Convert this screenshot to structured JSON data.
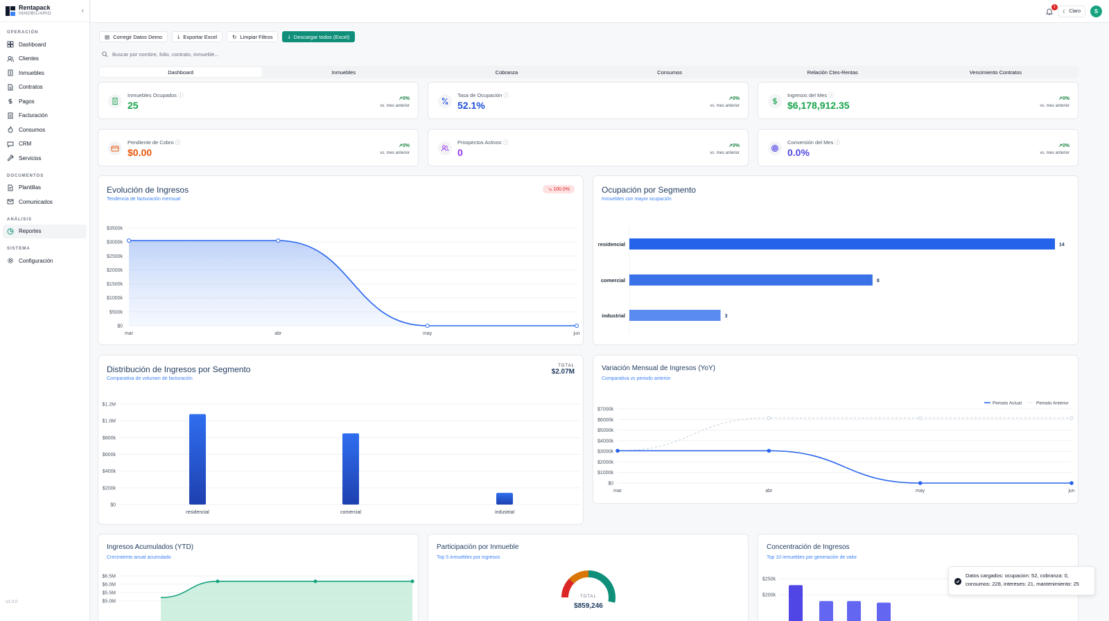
{
  "brand": {
    "name": "Rentapack",
    "sub": "INMOBILIARIO"
  },
  "sidebar": {
    "sections": [
      {
        "label": "OPERACIÓN",
        "items": [
          {
            "label": "Dashboard",
            "icon": "grid-icon"
          },
          {
            "label": "Clientes",
            "icon": "users-icon"
          },
          {
            "label": "Inmuebles",
            "icon": "building-icon"
          },
          {
            "label": "Contratos",
            "icon": "document-icon"
          },
          {
            "label": "Pagos",
            "icon": "dollar-icon"
          },
          {
            "label": "Facturación",
            "icon": "receipt-icon"
          },
          {
            "label": "Consumos",
            "icon": "flame-icon"
          },
          {
            "label": "CRM",
            "icon": "chat-icon"
          },
          {
            "label": "Servicios",
            "icon": "wrench-icon"
          }
        ]
      },
      {
        "label": "DOCUMENTOS",
        "items": [
          {
            "label": "Plantillas",
            "icon": "template-icon"
          },
          {
            "label": "Comunicados",
            "icon": "mail-icon"
          }
        ]
      },
      {
        "label": "ANÁLISIS",
        "items": [
          {
            "label": "Reportes",
            "icon": "pie-chart-icon",
            "active": true
          }
        ]
      },
      {
        "label": "SISTEMA",
        "items": [
          {
            "label": "Configuración",
            "icon": "gear-icon"
          }
        ]
      }
    ],
    "version": "V1.0.0"
  },
  "topbar": {
    "notifications": "1",
    "theme": "Claro",
    "avatar": "S"
  },
  "toolbar": {
    "fix": "Corregir Datos Demo",
    "export": "Exportar Excel",
    "clear": "Limpiar Filtros",
    "download": "Descargar todos (Excel)"
  },
  "search": {
    "placeholder": "Buscar por nombre, folio, contrato, inmueble..."
  },
  "tabs": [
    "Dashboard",
    "Inmuebles",
    "Cobranza",
    "Consumos",
    "Relación Ctes-Rentas",
    "Vencimiento Contratos"
  ],
  "kpis": [
    {
      "label": "Inmuebles Ocupados",
      "value": "25",
      "change": "↗0%",
      "note": "vs. mes anterior",
      "color": "#16a34a",
      "icon": "building-icon"
    },
    {
      "label": "Tasa de Ocupación",
      "value": "52.1%",
      "change": "↗0%",
      "note": "vs. mes anterior",
      "color": "#1d4ed8",
      "icon": "percent-icon"
    },
    {
      "label": "Ingresos del Mes",
      "value": "$6,178,912.35",
      "change": "↗0%",
      "note": "vs. mes anterior",
      "color": "#16a34a",
      "icon": "dollar-icon"
    },
    {
      "label": "Pendiente de Cobro",
      "value": "$0.00",
      "change": "↗0%",
      "note": "vs. mes anterior",
      "color": "#ea580c",
      "icon": "credit-card-icon"
    },
    {
      "label": "Prospectos Activos",
      "value": "0",
      "change": "↗0%",
      "note": "vs. mes anterior",
      "color": "#9333ea",
      "icon": "users-icon"
    },
    {
      "label": "Conversión del Mes",
      "value": "0.0%",
      "change": "↗0%",
      "note": "vs. mes anterior",
      "color": "#4f46e5",
      "icon": "target-icon"
    }
  ],
  "evolucion": {
    "title": "Evolución de Ingresos",
    "subtitle": "Tendencia de facturación mensual",
    "badge": "↘ 100.0%"
  },
  "ocupacion": {
    "title": "Ocupación por Segmento",
    "subtitle": "Inmuebles con mayor ocupación"
  },
  "distribucion": {
    "title": "Distribución de Ingresos por Segmento",
    "subtitle": "Comparativa de volumen de facturación",
    "total_label": "TOTAL",
    "total_value": "$2.07M"
  },
  "variacion": {
    "title": "Variación Mensual de Ingresos (YoY)",
    "subtitle": "Comparativa vs periodo anterior"
  },
  "ytd": {
    "title": "Ingresos Acumulados (YTD)",
    "subtitle": "Crecimiento anual acumulado"
  },
  "participacion": {
    "title": "Participación por Inmueble",
    "subtitle": "Top 5 inmuebles por ingresos",
    "total_label": "TOTAL",
    "total_value": "$859,246"
  },
  "concentracion": {
    "title": "Concentración de Ingresos",
    "subtitle": "Top 10 inmuebles por generación de valor"
  },
  "toast": {
    "text": "Datos cargados: ocupacion: 52, cobranza: 0, consumos: 228, intereses: 21, mantenimiento: 25"
  },
  "chart_data": [
    {
      "type": "area",
      "id": "evolucion",
      "x": [
        "mar",
        "abr",
        "may",
        "jun"
      ],
      "values": [
        3050,
        3050,
        0,
        0
      ],
      "yticks": [
        "$0",
        "$500k",
        "$1000k",
        "$1500k",
        "$2000k",
        "$2500k",
        "$3000k",
        "$3500k"
      ],
      "ylim": [
        0,
        3500
      ]
    },
    {
      "type": "bar",
      "id": "ocupacion",
      "orientation": "horizontal",
      "categories": [
        "residencial",
        "comercial",
        "industrial"
      ],
      "values": [
        14,
        8,
        3
      ]
    },
    {
      "type": "bar",
      "id": "distribucion",
      "categories": [
        "residencial",
        "comercial",
        "industrial"
      ],
      "values": [
        1.08,
        0.85,
        0.14
      ],
      "yticks": [
        "$0",
        "$200k",
        "$400k",
        "$600k",
        "$800k",
        "$1.0M",
        "$1.2M"
      ],
      "ylim": [
        0,
        1.2
      ]
    },
    {
      "type": "line",
      "id": "variacion",
      "x": [
        "mar",
        "abr",
        "may",
        "jun"
      ],
      "legend": [
        "Periodo Actual",
        "Periodo Anterior"
      ],
      "series": [
        {
          "name": "Periodo Actual",
          "values": [
            3050,
            3050,
            0,
            0
          ]
        },
        {
          "name": "Periodo Anterior",
          "values": [
            3050,
            6150,
            6150,
            6150
          ]
        }
      ],
      "yticks": [
        "$0",
        "$1000k",
        "$2000k",
        "$3000k",
        "$4000k",
        "$5000k",
        "$6000k",
        "$7000k"
      ],
      "ylim": [
        0,
        7000
      ]
    },
    {
      "type": "area",
      "id": "ytd",
      "values": [
        5.2,
        6.18,
        6.18,
        6.18
      ],
      "yticks": [
        "$6.5M",
        "$6.0M",
        "$5.5M",
        "$5.0M"
      ],
      "ylim": [
        4.7,
        6.7
      ]
    },
    {
      "type": "bar",
      "id": "concentracion",
      "values": [
        230,
        180,
        180,
        175
      ],
      "yticks": [
        "$250k",
        "$200k"
      ],
      "ylim": [
        150,
        260
      ]
    }
  ],
  "colors": {
    "accent": "#0f8f7a",
    "blue": "#2563eb"
  }
}
